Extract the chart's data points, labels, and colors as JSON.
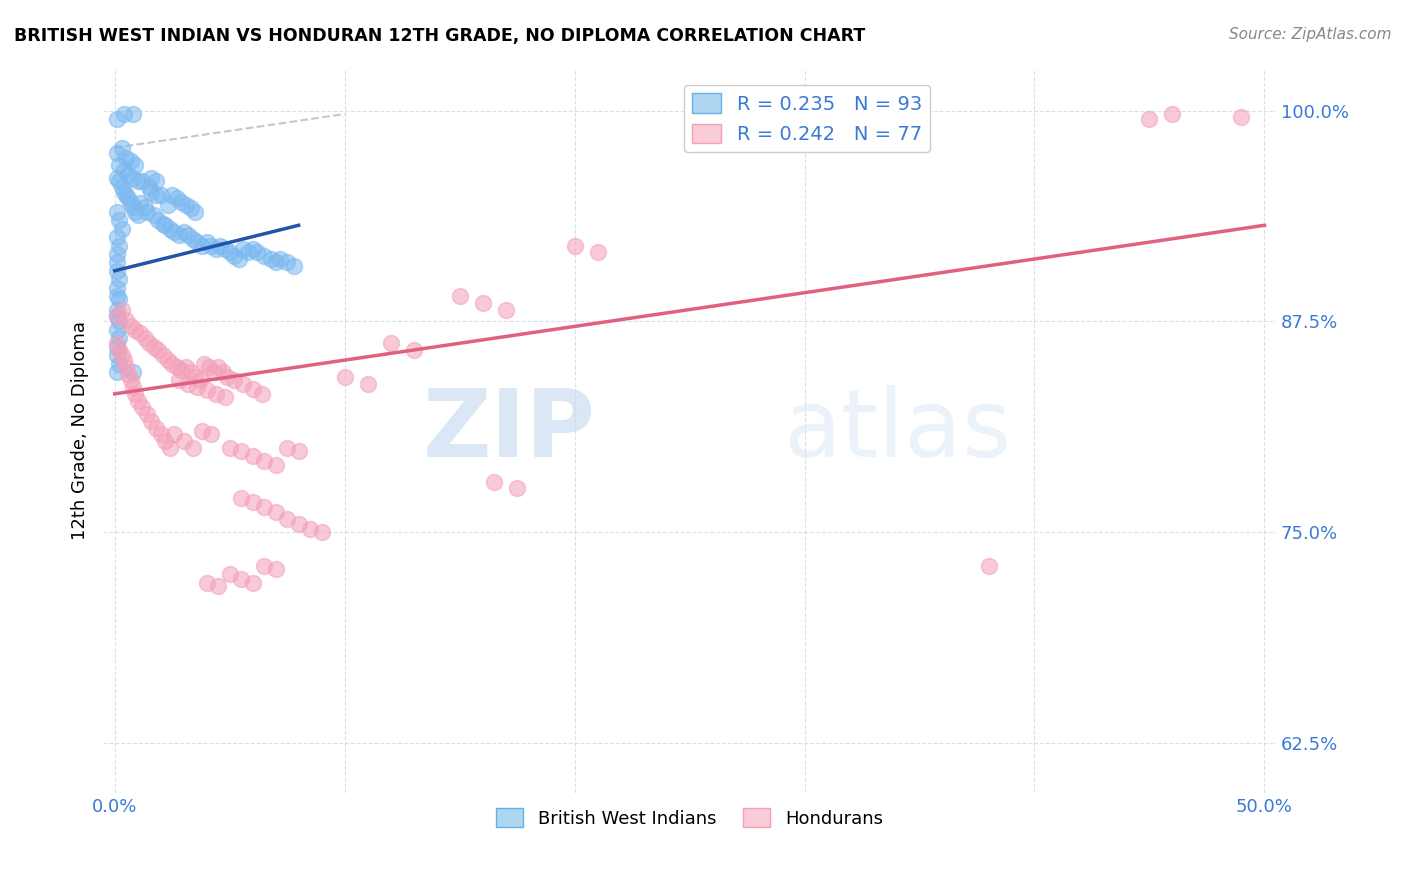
{
  "title": "BRITISH WEST INDIAN VS HONDURAN 12TH GRADE, NO DIPLOMA CORRELATION CHART",
  "source": "Source: ZipAtlas.com",
  "ylabel": "12th Grade, No Diploma",
  "legend_labels": [
    "British West Indians",
    "Hondurans"
  ],
  "watermark_zip": "ZIP",
  "watermark_atlas": "atlas",
  "blue_color": "#7ab8f0",
  "pink_color": "#f4a0b8",
  "trend_blue": "#2255aa",
  "trend_pink": "#e06080",
  "trend_gray": "#aabbcc",
  "xlim": [
    0.0,
    0.5
  ],
  "ylim": [
    0.595,
    1.025
  ],
  "xticks": [
    0.0,
    0.1,
    0.2,
    0.3,
    0.4,
    0.5
  ],
  "xticklabels": [
    "0.0%",
    "",
    "",
    "",
    "",
    "50.0%"
  ],
  "yticks": [
    0.625,
    0.75,
    0.875,
    1.0
  ],
  "yticklabels": [
    "62.5%",
    "75.0%",
    "87.5%",
    "100.0%"
  ],
  "bwi_points": [
    [
      0.001,
      0.995
    ],
    [
      0.004,
      0.998
    ],
    [
      0.008,
      0.998
    ],
    [
      0.001,
      0.975
    ],
    [
      0.003,
      0.978
    ],
    [
      0.005,
      0.972
    ],
    [
      0.007,
      0.97
    ],
    [
      0.009,
      0.968
    ],
    [
      0.002,
      0.968
    ],
    [
      0.004,
      0.965
    ],
    [
      0.006,
      0.962
    ],
    [
      0.008,
      0.96
    ],
    [
      0.01,
      0.958
    ],
    [
      0.012,
      0.958
    ],
    [
      0.015,
      0.955
    ],
    [
      0.016,
      0.952
    ],
    [
      0.018,
      0.95
    ],
    [
      0.02,
      0.95
    ],
    [
      0.001,
      0.96
    ],
    [
      0.002,
      0.958
    ],
    [
      0.003,
      0.955
    ],
    [
      0.004,
      0.952
    ],
    [
      0.005,
      0.95
    ],
    [
      0.006,
      0.948
    ],
    [
      0.007,
      0.945
    ],
    [
      0.008,
      0.943
    ],
    [
      0.009,
      0.94
    ],
    [
      0.01,
      0.938
    ],
    [
      0.011,
      0.945
    ],
    [
      0.013,
      0.943
    ],
    [
      0.014,
      0.94
    ],
    [
      0.017,
      0.938
    ],
    [
      0.019,
      0.935
    ],
    [
      0.021,
      0.933
    ],
    [
      0.022,
      0.932
    ],
    [
      0.024,
      0.93
    ],
    [
      0.026,
      0.928
    ],
    [
      0.028,
      0.926
    ],
    [
      0.03,
      0.928
    ],
    [
      0.032,
      0.926
    ],
    [
      0.034,
      0.924
    ],
    [
      0.036,
      0.922
    ],
    [
      0.038,
      0.92
    ],
    [
      0.04,
      0.922
    ],
    [
      0.042,
      0.92
    ],
    [
      0.044,
      0.918
    ],
    [
      0.046,
      0.92
    ],
    [
      0.048,
      0.918
    ],
    [
      0.05,
      0.916
    ],
    [
      0.052,
      0.914
    ],
    [
      0.054,
      0.912
    ],
    [
      0.056,
      0.918
    ],
    [
      0.058,
      0.916
    ],
    [
      0.06,
      0.918
    ],
    [
      0.062,
      0.916
    ],
    [
      0.065,
      0.914
    ],
    [
      0.068,
      0.912
    ],
    [
      0.07,
      0.91
    ],
    [
      0.072,
      0.912
    ],
    [
      0.075,
      0.91
    ],
    [
      0.078,
      0.908
    ],
    [
      0.001,
      0.94
    ],
    [
      0.002,
      0.935
    ],
    [
      0.003,
      0.93
    ],
    [
      0.001,
      0.925
    ],
    [
      0.002,
      0.92
    ],
    [
      0.001,
      0.915
    ],
    [
      0.001,
      0.91
    ],
    [
      0.001,
      0.905
    ],
    [
      0.002,
      0.9
    ],
    [
      0.001,
      0.895
    ],
    [
      0.001,
      0.89
    ],
    [
      0.002,
      0.888
    ],
    [
      0.001,
      0.882
    ],
    [
      0.001,
      0.878
    ],
    [
      0.002,
      0.875
    ],
    [
      0.001,
      0.87
    ],
    [
      0.002,
      0.865
    ],
    [
      0.001,
      0.86
    ],
    [
      0.001,
      0.855
    ],
    [
      0.002,
      0.85
    ],
    [
      0.001,
      0.845
    ],
    [
      0.008,
      0.845
    ],
    [
      0.025,
      0.95
    ],
    [
      0.027,
      0.948
    ],
    [
      0.029,
      0.946
    ],
    [
      0.031,
      0.944
    ],
    [
      0.033,
      0.942
    ],
    [
      0.035,
      0.94
    ],
    [
      0.023,
      0.944
    ],
    [
      0.016,
      0.96
    ],
    [
      0.018,
      0.958
    ]
  ],
  "hon_points": [
    [
      0.001,
      0.878
    ],
    [
      0.003,
      0.882
    ],
    [
      0.005,
      0.876
    ],
    [
      0.007,
      0.872
    ],
    [
      0.009,
      0.87
    ],
    [
      0.011,
      0.868
    ],
    [
      0.013,
      0.865
    ],
    [
      0.015,
      0.862
    ],
    [
      0.017,
      0.86
    ],
    [
      0.019,
      0.858
    ],
    [
      0.021,
      0.855
    ],
    [
      0.023,
      0.852
    ],
    [
      0.025,
      0.85
    ],
    [
      0.027,
      0.848
    ],
    [
      0.029,
      0.846
    ],
    [
      0.031,
      0.848
    ],
    [
      0.033,
      0.845
    ],
    [
      0.035,
      0.842
    ],
    [
      0.037,
      0.84
    ],
    [
      0.039,
      0.85
    ],
    [
      0.041,
      0.848
    ],
    [
      0.043,
      0.845
    ],
    [
      0.045,
      0.848
    ],
    [
      0.047,
      0.845
    ],
    [
      0.049,
      0.842
    ],
    [
      0.028,
      0.84
    ],
    [
      0.032,
      0.838
    ],
    [
      0.036,
      0.836
    ],
    [
      0.04,
      0.834
    ],
    [
      0.044,
      0.832
    ],
    [
      0.048,
      0.83
    ],
    [
      0.052,
      0.84
    ],
    [
      0.056,
      0.838
    ],
    [
      0.06,
      0.835
    ],
    [
      0.064,
      0.832
    ],
    [
      0.001,
      0.862
    ],
    [
      0.002,
      0.858
    ],
    [
      0.003,
      0.855
    ],
    [
      0.004,
      0.852
    ],
    [
      0.005,
      0.848
    ],
    [
      0.006,
      0.844
    ],
    [
      0.007,
      0.84
    ],
    [
      0.008,
      0.836
    ],
    [
      0.009,
      0.832
    ],
    [
      0.01,
      0.828
    ],
    [
      0.012,
      0.824
    ],
    [
      0.014,
      0.82
    ],
    [
      0.016,
      0.816
    ],
    [
      0.018,
      0.812
    ],
    [
      0.02,
      0.808
    ],
    [
      0.022,
      0.804
    ],
    [
      0.024,
      0.8
    ],
    [
      0.026,
      0.808
    ],
    [
      0.03,
      0.804
    ],
    [
      0.034,
      0.8
    ],
    [
      0.038,
      0.81
    ],
    [
      0.042,
      0.808
    ],
    [
      0.05,
      0.8
    ],
    [
      0.055,
      0.798
    ],
    [
      0.06,
      0.795
    ],
    [
      0.065,
      0.792
    ],
    [
      0.07,
      0.79
    ],
    [
      0.075,
      0.8
    ],
    [
      0.08,
      0.798
    ],
    [
      0.055,
      0.77
    ],
    [
      0.06,
      0.768
    ],
    [
      0.065,
      0.765
    ],
    [
      0.07,
      0.762
    ],
    [
      0.075,
      0.758
    ],
    [
      0.08,
      0.755
    ],
    [
      0.085,
      0.752
    ],
    [
      0.09,
      0.75
    ],
    [
      0.05,
      0.725
    ],
    [
      0.055,
      0.722
    ],
    [
      0.06,
      0.72
    ],
    [
      0.065,
      0.73
    ],
    [
      0.07,
      0.728
    ],
    [
      0.04,
      0.72
    ],
    [
      0.045,
      0.718
    ],
    [
      0.15,
      0.89
    ],
    [
      0.16,
      0.886
    ],
    [
      0.17,
      0.882
    ],
    [
      0.2,
      0.92
    ],
    [
      0.21,
      0.916
    ],
    [
      0.3,
      0.995
    ],
    [
      0.315,
      0.998
    ],
    [
      0.32,
      0.993
    ],
    [
      0.45,
      0.995
    ],
    [
      0.46,
      0.998
    ],
    [
      0.49,
      0.996
    ],
    [
      0.12,
      0.862
    ],
    [
      0.13,
      0.858
    ],
    [
      0.1,
      0.842
    ],
    [
      0.11,
      0.838
    ],
    [
      0.165,
      0.78
    ],
    [
      0.175,
      0.776
    ],
    [
      0.38,
      0.73
    ]
  ],
  "hon_trend": [
    0.0,
    0.832,
    0.5,
    0.932
  ],
  "bwi_trend": [
    0.0,
    0.905,
    0.08,
    0.932
  ],
  "gray_dash": [
    0.0,
    0.978,
    0.1,
    0.998
  ]
}
